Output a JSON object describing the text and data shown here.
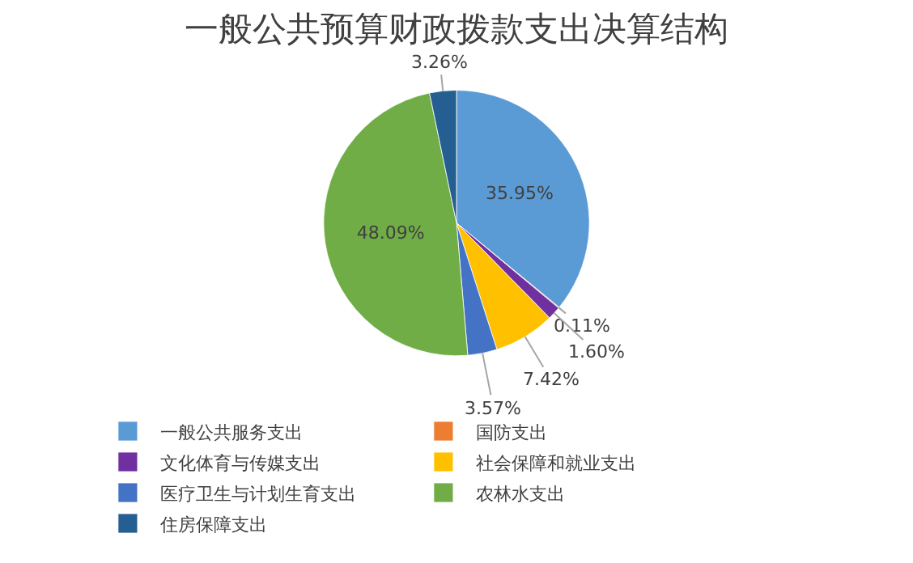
{
  "chart_data": {
    "type": "pie",
    "title": "一般公共预算财政拨款支出决算结构",
    "categories": [
      "一般公共服务支出",
      "国防支出",
      "文化体育与传媒支出",
      "社会保障和就业支出",
      "医疗卫生与计划生育支出",
      "农林水支出",
      "住房保障支出"
    ],
    "values": [
      35.95,
      0.11,
      1.6,
      7.42,
      3.57,
      48.09,
      3.26
    ],
    "colors": [
      "#5b9bd5",
      "#ed7d31",
      "#7030a0",
      "#ffc000",
      "#4472c4",
      "#70ad47",
      "#255e91"
    ],
    "value_labels": [
      "35.95%",
      "0.11%",
      "1.60%",
      "7.42%",
      "3.57%",
      "48.09%",
      "3.26%"
    ],
    "legend": "bottom"
  }
}
